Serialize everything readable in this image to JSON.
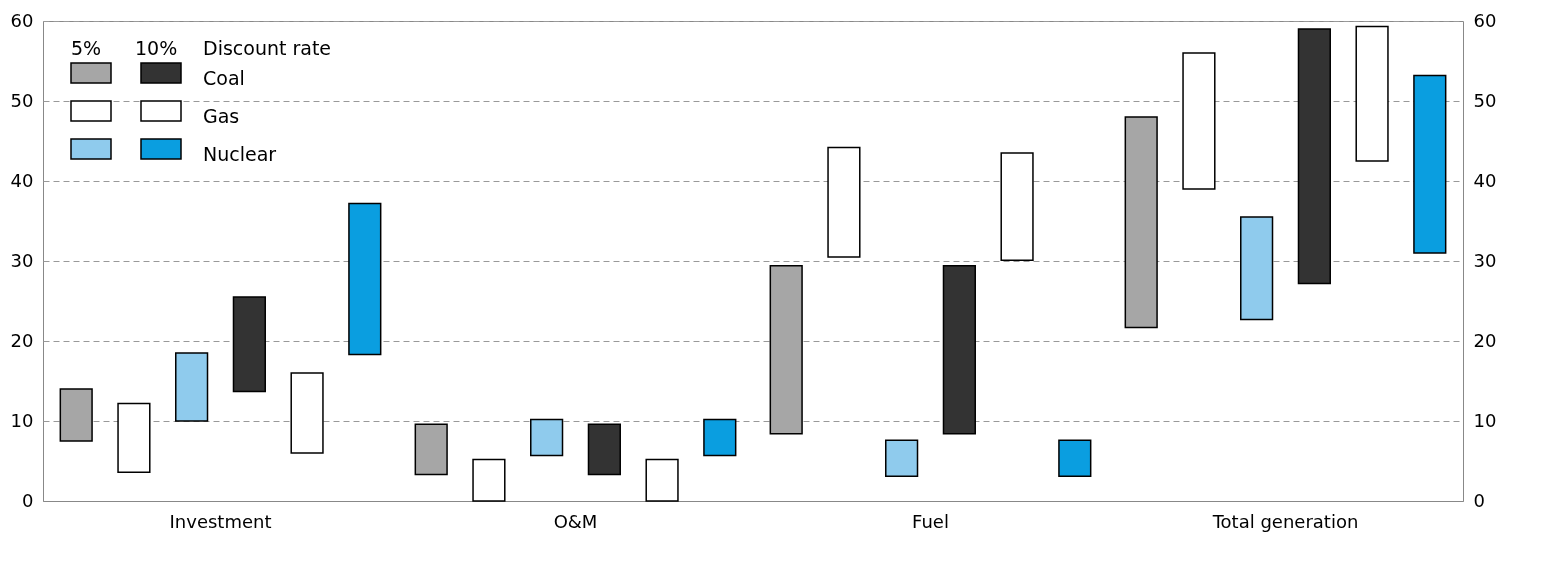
{
  "chart_data": {
    "type": "bar",
    "categories": [
      "Investment",
      "O&M",
      "Fuel",
      "Total generation"
    ],
    "series": [
      {
        "color": "#a6a6a6",
        "base": [
          7.5,
          3.3,
          8.4,
          21.7
        ],
        "values": [
          6.5,
          6.3,
          21,
          26.3
        ]
      },
      {
        "color": "#ffffff",
        "base": [
          3.6,
          0,
          30.5,
          39
        ],
        "values": [
          8.6,
          5.2,
          13.7,
          17
        ]
      },
      {
        "color": "#8fcbed",
        "base": [
          10,
          5.7,
          3.1,
          22.7
        ],
        "values": [
          8.5,
          4.5,
          4.5,
          12.8
        ]
      },
      {
        "name": "Coal",
        "color": "#333333",
        "base": [
          13.7,
          3.3,
          8.4,
          27.2
        ],
        "values": [
          11.8,
          6.3,
          21,
          31.8
        ]
      },
      {
        "name": "Gas",
        "color": "#ffffff",
        "base": [
          6,
          0,
          30.1,
          42.5
        ],
        "values": [
          10,
          5.2,
          13.4,
          16.8
        ]
      },
      {
        "name": "Nuclear",
        "color": "#0a9ee0",
        "base": [
          18.3,
          5.7,
          3.1,
          31
        ],
        "values": [
          18.9,
          4.5,
          4.5,
          22.2
        ]
      }
    ],
    "legend_title": "Discount rate",
    "annotations": [
      "5%",
      "10%"
    ],
    "ylim": [
      0,
      60
    ],
    "yticks": [
      0,
      10,
      20,
      30,
      40,
      50,
      60
    ],
    "y2lim": [
      0,
      60
    ],
    "y2ticks": [
      0,
      10,
      20,
      30,
      40,
      50,
      60
    ],
    "grid": "y",
    "legend": "top left"
  }
}
